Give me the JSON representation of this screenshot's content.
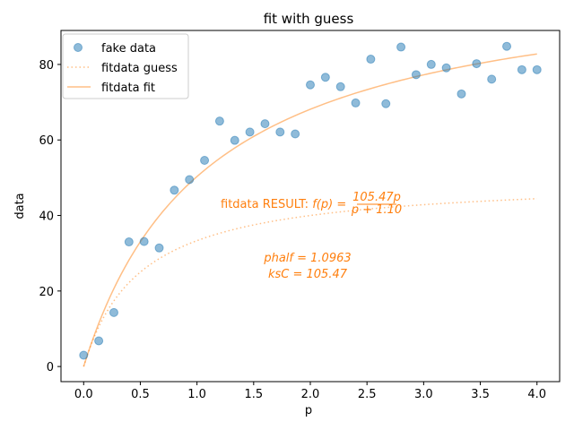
{
  "chart_data": {
    "type": "scatter",
    "title": "fit with guess",
    "xlabel": "p",
    "ylabel": "data",
    "xlim": [
      -0.2,
      4.2
    ],
    "ylim": [
      -4,
      89
    ],
    "xticks": [
      0.0,
      0.5,
      1.0,
      1.5,
      2.0,
      2.5,
      3.0,
      3.5,
      4.0
    ],
    "xtick_labels": [
      "0.0",
      "0.5",
      "1.0",
      "1.5",
      "2.0",
      "2.5",
      "3.0",
      "3.5",
      "4.0"
    ],
    "yticks": [
      0,
      20,
      40,
      60,
      80
    ],
    "ytick_labels": [
      "0",
      "20",
      "40",
      "60",
      "80"
    ],
    "grid": false,
    "legend_position": "top-left",
    "colors": {
      "data": "#1f77b4",
      "fit": "#ff7f0e"
    },
    "series": [
      {
        "name": "fake data",
        "kind": "scatter",
        "x": [
          0.0,
          0.1333,
          0.2667,
          0.4,
          0.5333,
          0.6667,
          0.8,
          0.9333,
          1.0667,
          1.2,
          1.3333,
          1.4667,
          1.6,
          1.7333,
          1.8667,
          2.0,
          2.1333,
          2.2667,
          2.4,
          2.5333,
          2.6667,
          2.8,
          2.9333,
          3.0667,
          3.2,
          3.3333,
          3.4667,
          3.6,
          3.7333,
          3.8667,
          4.0
        ],
        "y": [
          3.0,
          6.8,
          14.3,
          33.0,
          33.1,
          31.4,
          46.7,
          49.5,
          54.6,
          65.0,
          59.9,
          62.1,
          64.3,
          62.1,
          61.6,
          74.6,
          76.6,
          74.1,
          69.8,
          81.4,
          69.6,
          84.6,
          77.3,
          80.0,
          79.1,
          72.2,
          80.2,
          76.1,
          84.8,
          78.6,
          78.6
        ]
      },
      {
        "name": "fitdata guess",
        "kind": "line",
        "style": "dotted",
        "model": {
          "ksC": 50,
          "phalf": 0.5
        }
      },
      {
        "name": "fitdata fit",
        "kind": "line",
        "style": "solid",
        "model": {
          "ksC": 105.47,
          "phalf": 1.0963
        }
      }
    ],
    "annotations": [
      {
        "prefix": "fitdata RESULT: ",
        "f_expr": "f(p)",
        "eq": " = ",
        "numerator": "105.47p",
        "denominator": "p + 1.10"
      },
      {
        "lines": [
          "phalf = 1.0963",
          "ksC = 105.47"
        ]
      }
    ]
  }
}
